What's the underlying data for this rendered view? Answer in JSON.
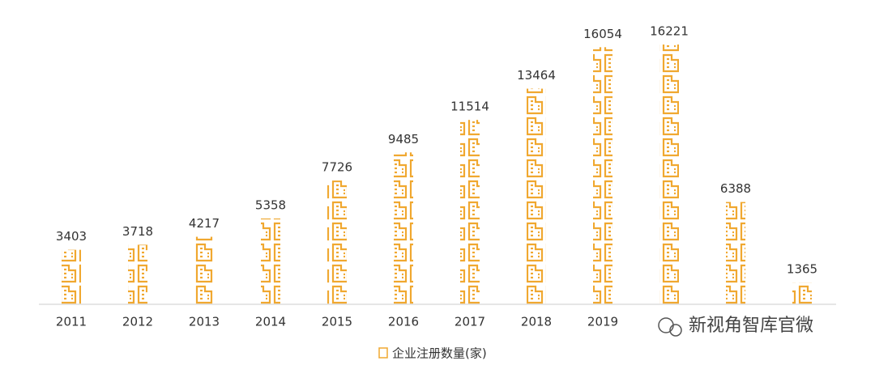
{
  "chart_data": {
    "type": "pictograph-bar",
    "categories": [
      "2011",
      "2012",
      "2013",
      "2014",
      "2015",
      "2016",
      "2017",
      "2018",
      "2019",
      null,
      null,
      null
    ],
    "values": [
      3403,
      3718,
      4217,
      5358,
      7726,
      9485,
      11514,
      13464,
      16054,
      16221,
      6388,
      1365
    ],
    "series_name": "企业注册数量(家)",
    "color": "#f0a830",
    "watermark": "新视角智库官微"
  }
}
